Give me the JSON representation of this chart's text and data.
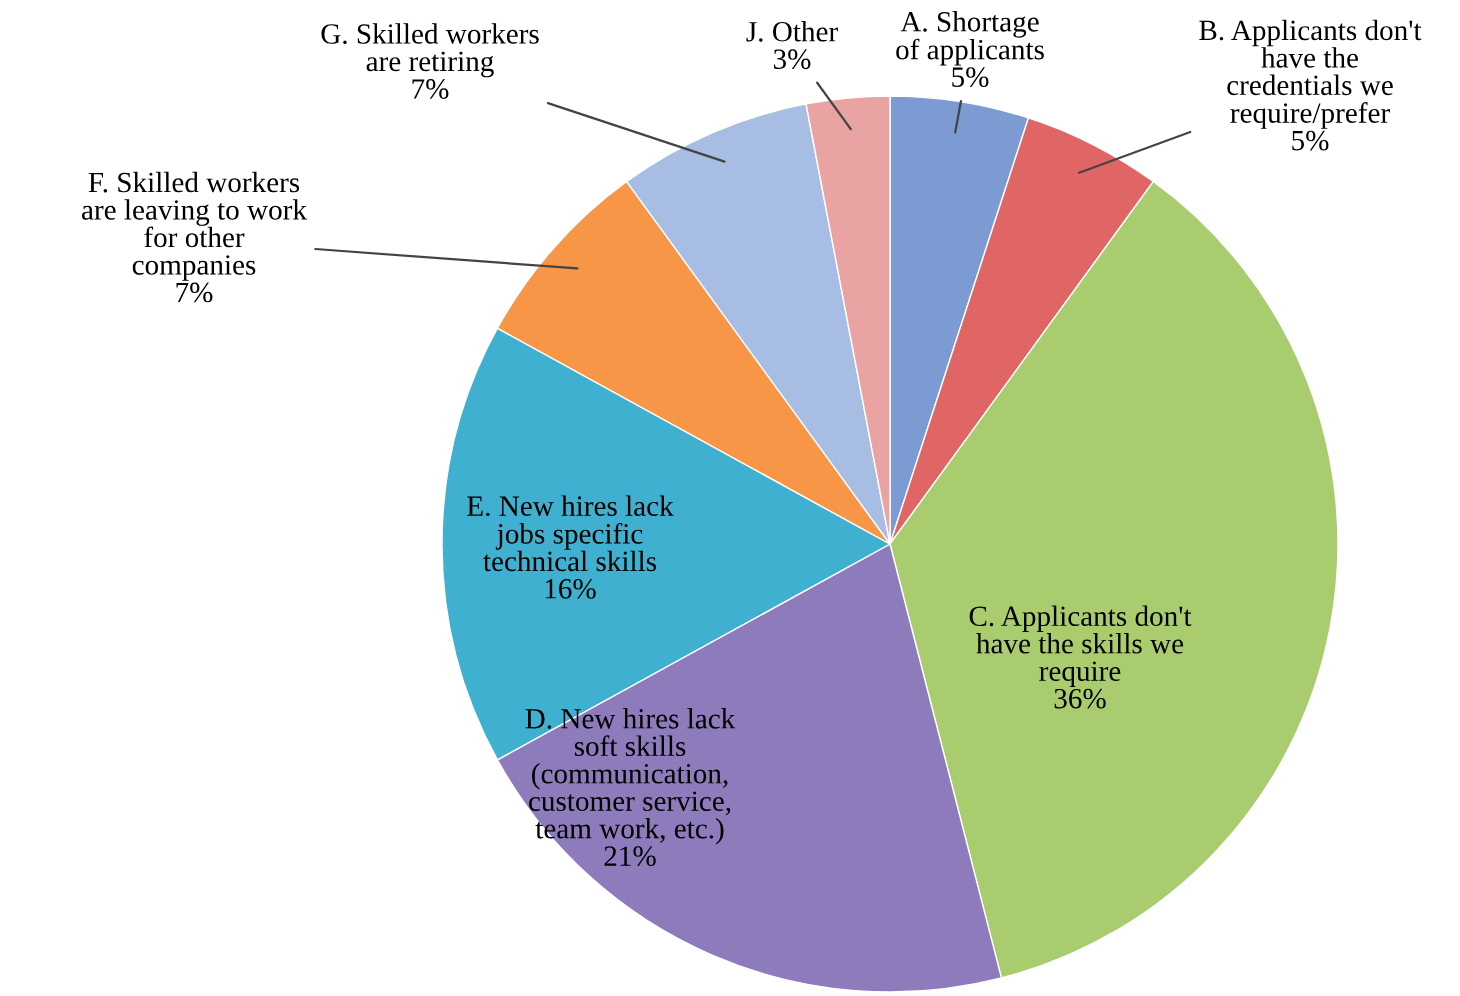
{
  "chart_data": {
    "type": "pie",
    "categories": [
      "A. Shortage\nof applicants",
      "B. Applicants don't\nhave the\ncredentials we\nrequire/prefer",
      "C. Applicants don't\nhave the skills we\nrequire",
      "D. New hires lack\nsoft skills\n(communication,\ncustomer service,\nteam work, etc.)",
      "E. New hires lack\njobs specific\ntechnical skills",
      "F. Skilled workers\nare leaving to work\nfor other\ncompanies",
      "G. Skilled workers\nare retiring",
      "J. Other"
    ],
    "values": [
      5,
      5,
      36,
      21,
      16,
      7,
      7,
      3
    ],
    "value_labels": [
      "5%",
      "5%",
      "36%",
      "21%",
      "16%",
      "7%",
      "7%",
      "3%"
    ],
    "colors": [
      "#7b9bd2",
      "#e06666",
      "#a9cd6e",
      "#8d7bbb",
      "#3fb0cf",
      "#f79646",
      "#a7bde3",
      "#eaa3a3"
    ]
  }
}
